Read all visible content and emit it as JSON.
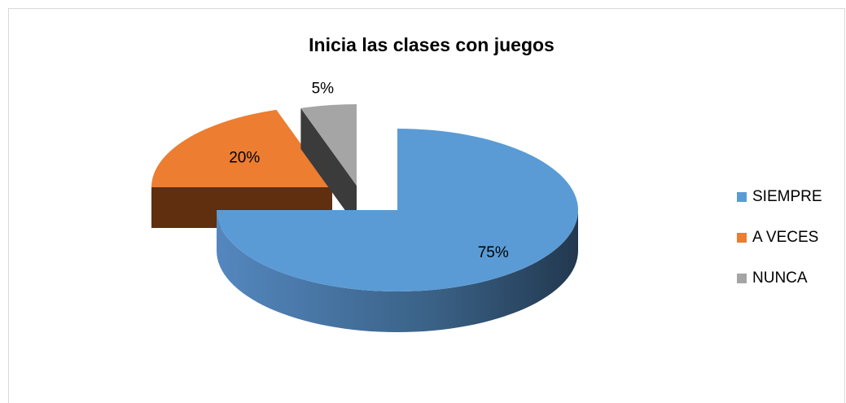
{
  "chart_data": {
    "type": "pie",
    "title": "Inicia las clases con juegos",
    "categories": [
      "SIEMPRE",
      "A VECES",
      "NUNCA"
    ],
    "values": [
      75,
      20,
      5
    ],
    "value_labels": [
      "75%",
      "20%",
      "5%"
    ],
    "colors": [
      "#5b9bd5",
      "#ed7d31",
      "#a5a5a5"
    ],
    "legend": "right",
    "three_d": true
  }
}
